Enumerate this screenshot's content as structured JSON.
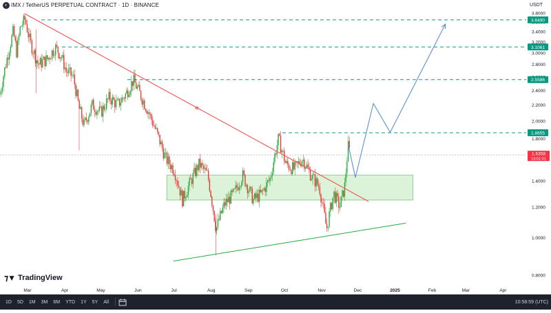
{
  "header": {
    "title": "IMX / TetherUS PERPETUAL CONTRACT · 1D · BINANCE",
    "currency": "USDT"
  },
  "logo": {
    "text": "TradingView"
  },
  "bottom_bar": {
    "timeframes": [
      "1D",
      "5D",
      "1M",
      "3M",
      "6M",
      "YTD",
      "1Y",
      "5Y",
      "All"
    ],
    "clock": "10:58:59 (UTC)"
  },
  "colors": {
    "up": "#26a69a",
    "up_bright": "#22ab3c",
    "down": "#e53935",
    "resistance_line": "#ef5350",
    "support_line": "#22ab3c",
    "level_line": "#089981",
    "zone_fill": "#d7f0d3",
    "zone_border": "#66bb6a",
    "projection": "#5b8fd6",
    "last_price": "#f23645"
  },
  "chart_data": {
    "type": "candlestick",
    "title": "IMX / TetherUS PERPETUAL CONTRACT · 1D · BINANCE",
    "price_scale": "log",
    "ylim": [
      0.8,
      3.8
    ],
    "grid": false,
    "y_ticks": [
      "3.8000",
      "3.6000",
      "3.4000",
      "3.2000",
      "3.0000",
      "2.8000",
      "2.6000",
      "2.4000",
      "2.2000",
      "2.0000",
      "1.8000",
      "1.6000",
      "1.4000",
      "1.2000",
      "1.0000",
      "0.8000"
    ],
    "x_ticks": [
      "Mar",
      "Apr",
      "May",
      "Jun",
      "Jul",
      "Aug",
      "Sep",
      "Oct",
      "Nov",
      "Dec",
      "2025",
      "Feb",
      "Mar",
      "Apr"
    ],
    "levels": [
      {
        "label": "3.6490",
        "value": 3.649
      },
      {
        "label": "3.1061",
        "value": 3.1061
      },
      {
        "label": "2.5586",
        "value": 2.5586
      },
      {
        "label": "1.8655",
        "value": 1.8655
      }
    ],
    "last_price": {
      "label": "1.6358",
      "value": 1.6358,
      "countdown": "13:01:01"
    },
    "trendlines": [
      {
        "name": "resistance",
        "label": "R",
        "from": {
          "x": "Feb 28",
          "y": 3.78
        },
        "to": {
          "x": "Dec 10",
          "y": 1.24
        }
      },
      {
        "name": "support",
        "from": {
          "x": "Jul 28",
          "y": 0.905
        },
        "to": {
          "x": "Jan 10",
          "y": 1.09
        }
      }
    ],
    "zone": {
      "from": "Jun 25",
      "to": "Jan 16",
      "low": 1.25,
      "high": 1.45
    },
    "projection_path": [
      {
        "x": "Nov 23",
        "y": 1.74
      },
      {
        "x": "Nov 29",
        "y": 1.43
      },
      {
        "x": "Dec 14",
        "y": 2.22
      },
      {
        "x": "Dec 28",
        "y": 1.87
      },
      {
        "x": "Feb 12",
        "y": 3.56
      }
    ],
    "ohlc_path": [
      {
        "x": "Feb 7",
        "y": 2.35
      },
      {
        "x": "Feb 14",
        "y": 3.0
      },
      {
        "x": "Feb 18",
        "y": 3.4
      },
      {
        "x": "Feb 21",
        "y": 3.0
      },
      {
        "x": "Feb 24",
        "y": 3.5
      },
      {
        "x": "Feb 28",
        "y": 3.66
      },
      {
        "x": "Mar 3",
        "y": 3.2
      },
      {
        "x": "Mar 10",
        "y": 2.8
      },
      {
        "x": "Mar 18",
        "y": 2.9
      },
      {
        "x": "Mar 24",
        "y": 3.1
      },
      {
        "x": "Mar 29",
        "y": 2.95
      },
      {
        "x": "Apr 2",
        "y": 2.7
      },
      {
        "x": "Apr 8",
        "y": 2.6
      },
      {
        "x": "Apr 13",
        "y": 2.15
      },
      {
        "x": "Apr 17",
        "y": 1.95
      },
      {
        "x": "Apr 24",
        "y": 2.2
      },
      {
        "x": "May 1",
        "y": 2.1
      },
      {
        "x": "May 8",
        "y": 2.3
      },
      {
        "x": "May 15",
        "y": 2.2
      },
      {
        "x": "May 22",
        "y": 2.35
      },
      {
        "x": "May 28",
        "y": 2.55
      },
      {
        "x": "Jun 4",
        "y": 2.3
      },
      {
        "x": "Jun 10",
        "y": 2.1
      },
      {
        "x": "Jun 17",
        "y": 1.85
      },
      {
        "x": "Jun 24",
        "y": 1.6
      },
      {
        "x": "Jul 1",
        "y": 1.5
      },
      {
        "x": "Jul 8",
        "y": 1.25
      },
      {
        "x": "Jul 15",
        "y": 1.4
      },
      {
        "x": "Jul 22",
        "y": 1.55
      },
      {
        "x": "Jul 29",
        "y": 1.45
      },
      {
        "x": "Aug 5",
        "y": 1.05
      },
      {
        "x": "Aug 12",
        "y": 1.22
      },
      {
        "x": "Aug 20",
        "y": 1.3
      },
      {
        "x": "Aug 27",
        "y": 1.45
      },
      {
        "x": "Sep 5",
        "y": 1.25
      },
      {
        "x": "Sep 12",
        "y": 1.3
      },
      {
        "x": "Sep 19",
        "y": 1.42
      },
      {
        "x": "Sep 26",
        "y": 1.8
      },
      {
        "x": "Oct 2",
        "y": 1.55
      },
      {
        "x": "Oct 9",
        "y": 1.5
      },
      {
        "x": "Oct 16",
        "y": 1.6
      },
      {
        "x": "Oct 23",
        "y": 1.45
      },
      {
        "x": "Oct 30",
        "y": 1.35
      },
      {
        "x": "Nov 5",
        "y": 1.05
      },
      {
        "x": "Nov 11",
        "y": 1.3
      },
      {
        "x": "Nov 16",
        "y": 1.2
      },
      {
        "x": "Nov 20",
        "y": 1.35
      },
      {
        "x": "Nov 23",
        "y": 1.72
      },
      {
        "x": "Nov 25",
        "y": 1.64
      }
    ]
  }
}
